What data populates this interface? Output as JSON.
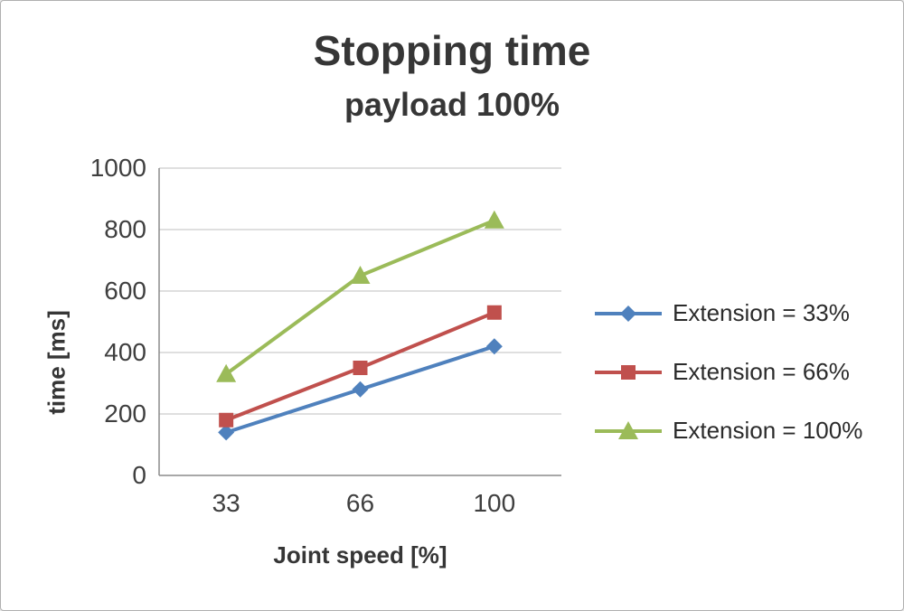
{
  "window": {
    "background": "#ffffff",
    "border_color": "#b0b0b0"
  },
  "chart_data": {
    "type": "line",
    "title": "Stopping time",
    "subtitle": "payload 100%",
    "xlabel": "Joint speed [%]",
    "ylabel": "time [ms]",
    "categories": [
      "33",
      "66",
      "100"
    ],
    "ylim": [
      0,
      1000
    ],
    "ytick_step": 200,
    "grid": true,
    "legend_position": "right",
    "series": [
      {
        "name": "Extension = 33%",
        "marker": "diamond",
        "color": "#4F81BD",
        "values": [
          140,
          280,
          420
        ]
      },
      {
        "name": "Extension = 66%",
        "marker": "square",
        "color": "#C0504D",
        "values": [
          180,
          350,
          530
        ]
      },
      {
        "name": "Extension = 100%",
        "marker": "triangle",
        "color": "#9BBB59",
        "values": [
          330,
          650,
          830
        ]
      }
    ],
    "styles": {
      "gridline_color": "#BFBFBF",
      "axis_color": "#8C8C8C",
      "text_color": "#3f3f3f"
    }
  }
}
